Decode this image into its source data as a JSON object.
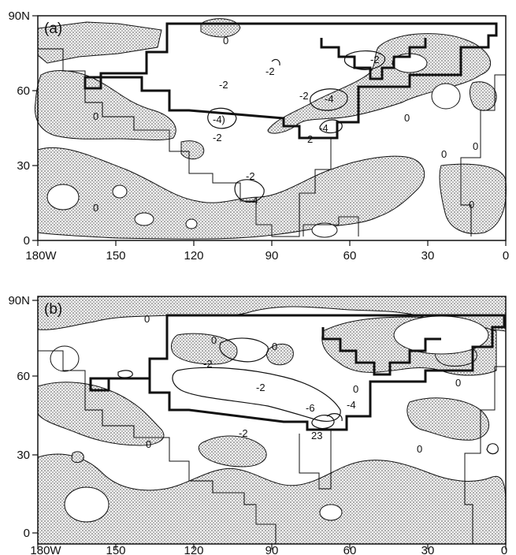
{
  "panels": [
    {
      "label": "(a)",
      "lat_ticks": [
        "90N",
        "60",
        "30",
        "0"
      ],
      "lon_ticks": [
        "180W",
        "150",
        "120",
        "90",
        "60",
        "30",
        "0"
      ],
      "contour_labels": [
        "0",
        "0",
        "0",
        "0",
        "0",
        "-2",
        "-2",
        "-2",
        "-4",
        "-4)",
        "-2",
        "-4",
        "2",
        "-2",
        "-4",
        "-2",
        "0",
        "0"
      ]
    },
    {
      "label": "(b)",
      "lat_ticks": [
        "90N",
        "60",
        "30",
        "0"
      ],
      "lon_ticks": [
        "180W",
        "150",
        "120",
        "90",
        "60",
        "30",
        "0"
      ],
      "contour_labels": [
        "0",
        "0",
        "-2",
        "0",
        "-2",
        "-6",
        "-4",
        "0",
        "-2",
        "23",
        "0",
        "0",
        "0"
      ]
    }
  ],
  "colors": {
    "stipple": "#8a8a8a",
    "line": "#111111",
    "background": "#ffffff"
  }
}
